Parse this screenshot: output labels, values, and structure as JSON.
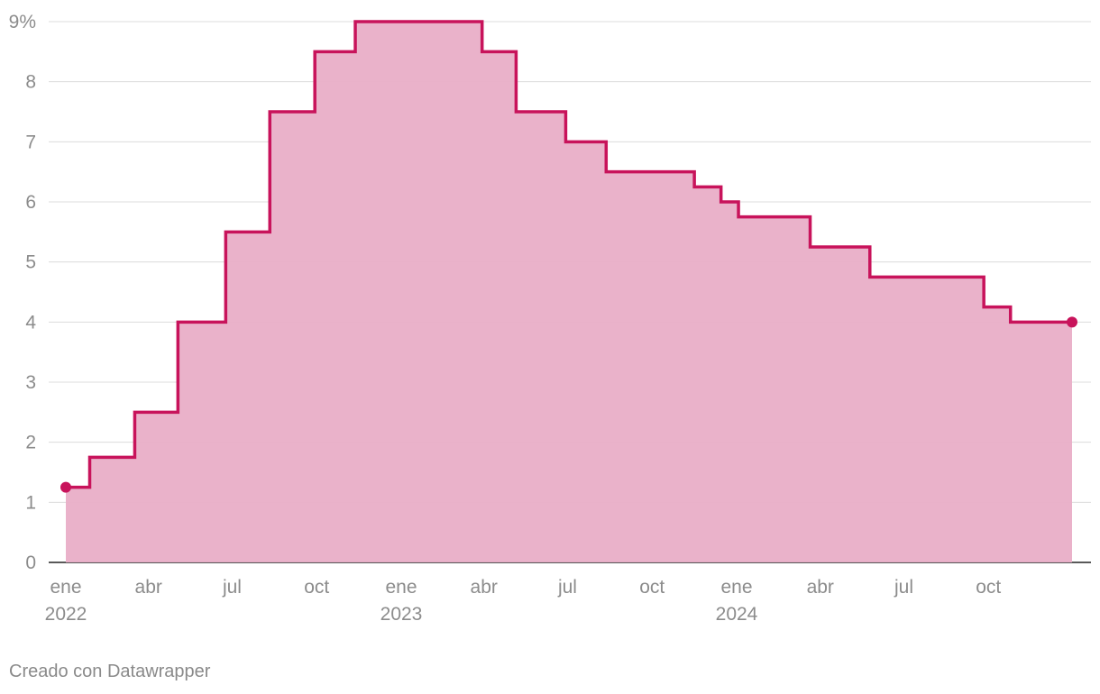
{
  "colors": {
    "line": "#c8135b",
    "area": "#e9aec7",
    "grid": "#dcdcdc",
    "axis_text": "#8c8c8c",
    "baseline": "#222222"
  },
  "credit": "Creado con Datawrapper",
  "chart_data": {
    "type": "area",
    "step": true,
    "title": "",
    "xlabel": "",
    "ylabel": "",
    "ylim": [
      0,
      9
    ],
    "y_unit_suffix": "%",
    "yticks": [
      0,
      1,
      2,
      3,
      4,
      5,
      6,
      7,
      8,
      9
    ],
    "ytick_labels": [
      "0",
      "1",
      "2",
      "3",
      "4",
      "5",
      "6",
      "7",
      "8",
      "9%"
    ],
    "xlim": [
      "2022-01-01",
      "2024-12-31"
    ],
    "xticks": [
      {
        "date": "2022-01-01",
        "label": "ene",
        "year": "2022"
      },
      {
        "date": "2022-04-01",
        "label": "abr",
        "year": ""
      },
      {
        "date": "2022-07-01",
        "label": "jul",
        "year": ""
      },
      {
        "date": "2022-10-01",
        "label": "oct",
        "year": ""
      },
      {
        "date": "2023-01-01",
        "label": "ene",
        "year": "2023"
      },
      {
        "date": "2023-04-01",
        "label": "abr",
        "year": ""
      },
      {
        "date": "2023-07-01",
        "label": "jul",
        "year": ""
      },
      {
        "date": "2023-10-01",
        "label": "oct",
        "year": ""
      },
      {
        "date": "2024-01-01",
        "label": "ene",
        "year": "2024"
      },
      {
        "date": "2024-04-01",
        "label": "abr",
        "year": ""
      },
      {
        "date": "2024-07-01",
        "label": "jul",
        "year": ""
      },
      {
        "date": "2024-10-01",
        "label": "oct",
        "year": ""
      }
    ],
    "grid": true,
    "series": [
      {
        "points": [
          {
            "x": "2022-01-01",
            "y": 1.25
          },
          {
            "x": "2022-01-27",
            "y": 1.75
          },
          {
            "x": "2022-03-17",
            "y": 2.5
          },
          {
            "x": "2022-05-03",
            "y": 4.0
          },
          {
            "x": "2022-06-24",
            "y": 5.5
          },
          {
            "x": "2022-08-11",
            "y": 7.5
          },
          {
            "x": "2022-09-29",
            "y": 8.5
          },
          {
            "x": "2022-11-12",
            "y": 9.0
          },
          {
            "x": "2023-03-30",
            "y": 8.5
          },
          {
            "x": "2023-05-06",
            "y": 7.5
          },
          {
            "x": "2023-06-29",
            "y": 7.0
          },
          {
            "x": "2023-08-12",
            "y": 6.5
          },
          {
            "x": "2023-11-16",
            "y": 6.25
          },
          {
            "x": "2023-12-15",
            "y": 6.0
          },
          {
            "x": "2024-01-03",
            "y": 5.75
          },
          {
            "x": "2024-03-21",
            "y": 5.25
          },
          {
            "x": "2024-05-25",
            "y": 4.75
          },
          {
            "x": "2024-09-26",
            "y": 4.25
          },
          {
            "x": "2024-10-25",
            "y": 4.0
          },
          {
            "x": "2024-12-31",
            "y": 4.0
          }
        ]
      }
    ]
  }
}
